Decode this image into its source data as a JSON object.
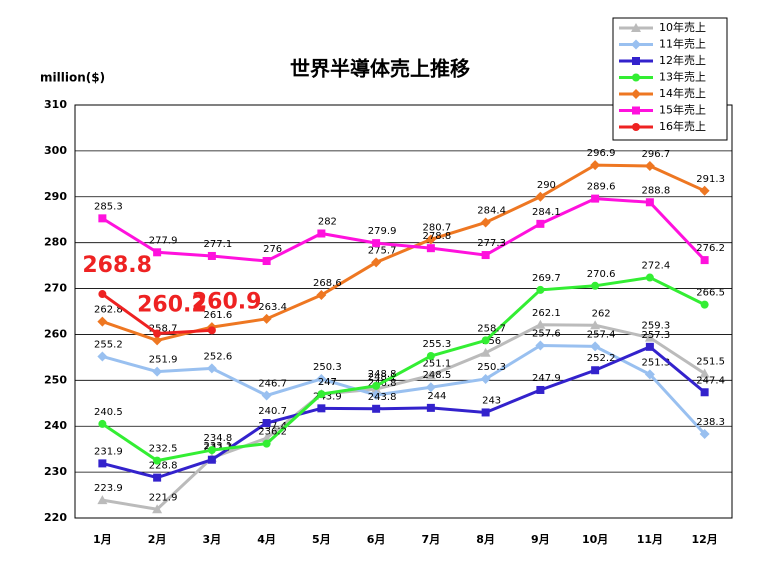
{
  "chart_data": {
    "type": "line",
    "title": "世界半導体売上推移",
    "ylabel": "million($)",
    "categories": [
      "1月",
      "2月",
      "3月",
      "4月",
      "5月",
      "6月",
      "7月",
      "8月",
      "9月",
      "10月",
      "11月",
      "12月"
    ],
    "ylim": [
      220,
      310
    ],
    "yticks": [
      220,
      230,
      240,
      250,
      260,
      270,
      280,
      290,
      300,
      310
    ],
    "grid": true,
    "legend": "upper right",
    "series": [
      {
        "name": "10年売上",
        "color": "#bbbbbb",
        "marker": "triangle",
        "values": [
          223.9,
          221.9,
          233.1,
          237.4,
          247,
          248.1,
          251.1,
          256,
          262.1,
          262,
          259.3,
          251.5
        ]
      },
      {
        "name": "11年売上",
        "color": "#99c0f0",
        "marker": "diamond",
        "values": [
          255.2,
          251.9,
          252.6,
          246.7,
          250.3,
          246.8,
          248.5,
          250.3,
          257.6,
          257.4,
          251.3,
          238.3
        ]
      },
      {
        "name": "12年売上",
        "color": "#3322cc",
        "marker": "square",
        "values": [
          231.9,
          228.8,
          232.7,
          240.7,
          243.9,
          243.8,
          244,
          243,
          247.9,
          252.2,
          257.3,
          247.4
        ]
      },
      {
        "name": "13年売上",
        "color": "#33ee33",
        "marker": "circle",
        "values": [
          240.5,
          232.5,
          234.8,
          236.2,
          247,
          248.8,
          255.3,
          258.7,
          269.7,
          270.6,
          272.4,
          266.5
        ]
      },
      {
        "name": "14年売上",
        "color": "#ee7722",
        "marker": "diamond",
        "values": [
          262.8,
          258.7,
          261.6,
          263.4,
          268.6,
          275.7,
          280.7,
          284.4,
          290,
          296.9,
          296.7,
          291.3
        ]
      },
      {
        "name": "15年売上",
        "color": "#ff11dd",
        "marker": "square",
        "values": [
          285.3,
          277.9,
          277.1,
          276,
          282,
          279.9,
          278.8,
          277.3,
          284.1,
          289.6,
          288.8,
          276.2
        ]
      },
      {
        "name": "16年売上",
        "color": "#ee2222",
        "marker": "circle",
        "values": [
          268.8,
          260.2,
          260.9,
          null,
          null,
          null,
          null,
          null,
          null,
          null,
          null,
          null
        ]
      }
    ]
  }
}
